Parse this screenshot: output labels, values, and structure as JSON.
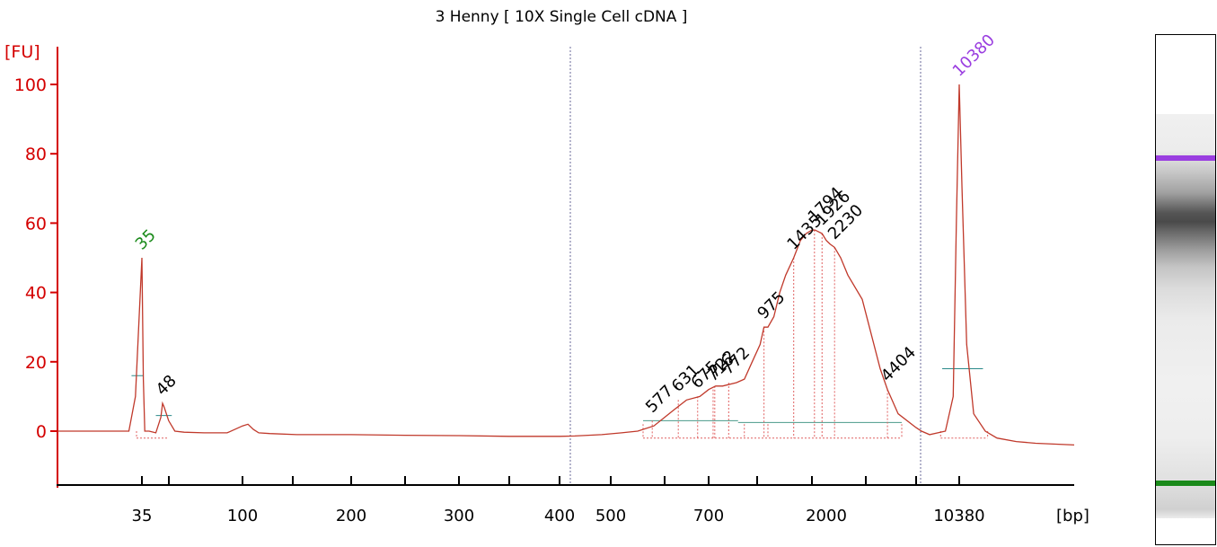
{
  "chart_data": {
    "type": "line",
    "title": "3 Henny  [ 10X Single Cell cDNA ]",
    "xlabel": "[bp]",
    "ylabel": "[FU]",
    "ylim": [
      -17,
      110
    ],
    "yticks": [
      "0",
      "20",
      "40",
      "60",
      "80",
      "100"
    ],
    "ytick_values": [
      0,
      20,
      40,
      60,
      80,
      100
    ],
    "xtick_labels": [
      "35",
      "100",
      "200",
      "300",
      "400",
      "500",
      "700",
      "2000",
      "10380"
    ],
    "series": [
      {
        "color": "#c0392b",
        "x": [
          22,
          25,
          28,
          33,
          34,
          35,
          36,
          37,
          40,
          44,
          47,
          48,
          49,
          52,
          56,
          62,
          75,
          90,
          100,
          105,
          110,
          115,
          125,
          150,
          200,
          250,
          300,
          350,
          400,
          420,
          450,
          480,
          520,
          550,
          580,
          600,
          620,
          650,
          680,
          700,
          725,
          750,
          800,
          850,
          900,
          950,
          975,
          1000,
          1100,
          1200,
          1300,
          1435,
          1550,
          1650,
          1750,
          1804,
          1926,
          2000,
          2100,
          2230,
          2400,
          2600,
          3000,
          3500,
          4000,
          4404,
          5000,
          6000,
          7000,
          8500,
          9500,
          10000,
          10200,
          10380,
          10500,
          10700,
          11000,
          11500,
          12000,
          13000,
          14000,
          16000
        ],
        "values": [
          0,
          0,
          0,
          0,
          10,
          50,
          15,
          0,
          0,
          -0.5,
          4,
          8,
          7,
          3,
          0,
          -0.3,
          -0.5,
          -0.5,
          1.5,
          2,
          0.5,
          -0.5,
          -0.7,
          -1,
          -1,
          -1.2,
          -1.3,
          -1.5,
          -1.5,
          -1.4,
          -1.2,
          -1,
          -0.5,
          0,
          1.5,
          4,
          6,
          9,
          10,
          12,
          13,
          13,
          14,
          15,
          20,
          25,
          30,
          30,
          33,
          40,
          45,
          50,
          55,
          57,
          58,
          58,
          57,
          55,
          54,
          53,
          50,
          45,
          38,
          28,
          18,
          12,
          5,
          1,
          0,
          -1,
          0,
          10,
          60,
          100,
          70,
          25,
          5,
          0,
          -2,
          -3,
          -3.5,
          -4
        ]
      }
    ],
    "peaks": [
      {
        "label": "35",
        "x": 35,
        "y": 50,
        "color": "#1a8a1a"
      },
      {
        "label": "48",
        "x": 48,
        "y": 8,
        "color": "#000000"
      },
      {
        "label": "577",
        "x": 577,
        "y": 3,
        "color": "#000000"
      },
      {
        "label": "631",
        "x": 631,
        "y": 9,
        "color": "#000000"
      },
      {
        "label": "675",
        "x": 675,
        "y": 10,
        "color": "#000000"
      },
      {
        "label": "716",
        "x": 716,
        "y": 12,
        "color": "#000000"
      },
      {
        "label": "722",
        "x": 722,
        "y": 13,
        "color": "#000000"
      },
      {
        "label": "772",
        "x": 772,
        "y": 14,
        "color": "#000000"
      },
      {
        "label": "975",
        "x": 975,
        "y": 30,
        "color": "#000000"
      },
      {
        "label": "1435",
        "x": 1435,
        "y": 50,
        "color": "#000000"
      },
      {
        "label": "1794",
        "x": 1794,
        "y": 58,
        "color": "#000000"
      },
      {
        "label": "1926",
        "x": 1926,
        "y": 57,
        "color": "#000000"
      },
      {
        "label": "2230",
        "x": 2230,
        "y": 53,
        "color": "#000000"
      },
      {
        "label": "4404",
        "x": 4404,
        "y": 12,
        "color": "#000000"
      },
      {
        "label": "10380",
        "x": 10380,
        "y": 100,
        "color": "#9a3ee0"
      }
    ],
    "markers": {
      "lower_color": "#1a8a1a",
      "upper_color": "#9a3ee0"
    }
  }
}
